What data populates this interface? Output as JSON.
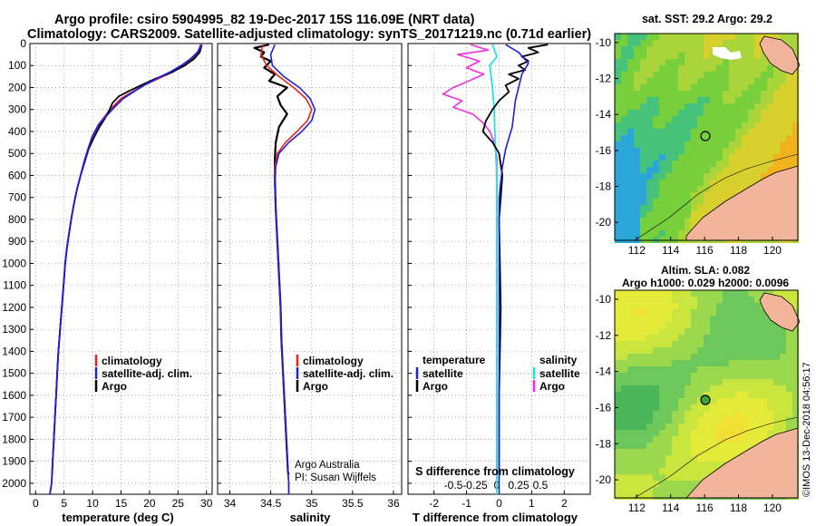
{
  "header": {
    "line1": "Argo profile: csiro 5904995_82 19-Dec-2017 15S 116.09E (NRT data)",
    "line2": "Climatology: CARS2009. Satellite-adjusted climatology: synTS_20171219.nc (0.71d earlier)"
  },
  "colors": {
    "climatology": "#e8231e",
    "satellite": "#1c22d6",
    "argo": "#000000",
    "sat_salinity": "#22e0e8",
    "argo_salinity": "#f02ee0"
  },
  "depth_axis": {
    "ticks": [
      0,
      100,
      200,
      300,
      400,
      500,
      600,
      700,
      800,
      900,
      1000,
      1100,
      1200,
      1300,
      1400,
      1500,
      1600,
      1700,
      1800,
      1900,
      2000
    ],
    "range": [
      0,
      2050
    ]
  },
  "panels": {
    "temperature": {
      "xlabel": "temperature (deg C)",
      "xticks": [
        "0",
        "5",
        "10",
        "15",
        "20",
        "25",
        "30"
      ],
      "legend": [
        "climatology",
        "satellite-adj. clim.",
        "Argo"
      ]
    },
    "salinity": {
      "xlabel": "salinity",
      "xticks": [
        "34",
        "34.5",
        "35",
        "35.5",
        "36"
      ],
      "legend": [
        "climatology",
        "satellite-adj. clim.",
        "Argo"
      ],
      "credit1": "Argo Australia",
      "credit2": "PI: Susan Wijffels"
    },
    "difference": {
      "xlabel": "T difference from climatology",
      "xticks": [
        "-2",
        "-1",
        "0",
        "1",
        "2"
      ],
      "stitle": "S difference from climatology",
      "sticks": [
        "-0.5",
        "-0.25",
        "0",
        "0.25",
        "0.5"
      ],
      "legend_t_head": "temperature",
      "legend_s_head": "salinity",
      "legend_t": [
        "satellite",
        "Argo"
      ],
      "legend_s": [
        "satellite",
        "Argo"
      ]
    }
  },
  "maps": {
    "sst_title": "sat. SST: 29.2 Argo: 29.2",
    "sla_title1": "Altim. SLA: 0.082",
    "sla_title2": "Argo h1000: 0.029 h2000: 0.0096",
    "lat_ticks": [
      "-10",
      "-12",
      "-14",
      "-16",
      "-18",
      "-20"
    ],
    "lon_ticks": [
      "112",
      "114",
      "116",
      "118",
      "120"
    ],
    "float_position": {
      "lon": 116.09,
      "lat": -15
    }
  },
  "footer": "©IMOS 13-Dec-2018 04:56:17",
  "chart_data": [
    {
      "type": "line",
      "title": "temperature",
      "xlabel": "temperature (deg C)",
      "ylabel": "depth",
      "xlim": [
        -1,
        31
      ],
      "ylim": [
        2050,
        0
      ],
      "series": [
        {
          "name": "climatology",
          "x": [
            29.0,
            28.5,
            27.5,
            26.0,
            24.0,
            21.5,
            19.0,
            17.0,
            15.0,
            13.5,
            12.2,
            11.0,
            10.0,
            9.2,
            8.5,
            7.9,
            7.3,
            6.8,
            6.3,
            5.9,
            5.5,
            5.2,
            4.9,
            4.6,
            4.3,
            4.0,
            3.8,
            3.6,
            3.4,
            3.2,
            3.0,
            2.8,
            2.5
          ],
          "depth": [
            5,
            40,
            70,
            100,
            130,
            160,
            190,
            220,
            250,
            290,
            330,
            370,
            420,
            480,
            540,
            600,
            660,
            720,
            790,
            860,
            930,
            1000,
            1100,
            1200,
            1300,
            1400,
            1500,
            1600,
            1700,
            1800,
            1900,
            2000,
            2050
          ]
        },
        {
          "name": "satellite-adj. clim.",
          "x": [
            29.2,
            28.4,
            27.2,
            25.6,
            23.6,
            21.2,
            19.0,
            17.2,
            15.4,
            13.8,
            12.4,
            11.1,
            10.0,
            9.2,
            8.5,
            7.9,
            7.3,
            6.8,
            6.3,
            5.9,
            5.5,
            5.2,
            4.9,
            4.6,
            4.3,
            4.0,
            3.8,
            3.6,
            3.4,
            3.2,
            3.0,
            2.8,
            2.5
          ],
          "depth": [
            5,
            40,
            70,
            100,
            130,
            160,
            190,
            220,
            250,
            290,
            330,
            370,
            420,
            480,
            540,
            600,
            660,
            720,
            790,
            860,
            930,
            1000,
            1100,
            1200,
            1300,
            1400,
            1500,
            1600,
            1700,
            1800,
            1900,
            2000,
            2050
          ]
        },
        {
          "name": "Argo",
          "x": [
            29.2,
            28.8,
            27.8,
            26.2,
            24.0,
            21.0,
            18.5,
            16.5,
            14.6,
            13.5,
            13.0,
            12.2,
            11.2,
            10.2,
            9.3,
            8.6,
            7.9,
            7.3,
            6.8,
            6.3,
            5.9,
            5.5,
            5.2,
            4.9,
            4.6,
            4.3,
            4.0,
            3.8,
            3.6,
            3.4,
            3.2,
            3.0,
            2.9
          ],
          "depth": [
            5,
            40,
            70,
            100,
            130,
            160,
            190,
            215,
            240,
            270,
            300,
            340,
            380,
            430,
            480,
            540,
            600,
            660,
            720,
            790,
            860,
            930,
            1000,
            1100,
            1200,
            1300,
            1400,
            1500,
            1600,
            1700,
            1800,
            1900,
            1960
          ]
        }
      ]
    },
    {
      "type": "line",
      "title": "salinity",
      "xlabel": "salinity",
      "ylabel": "depth",
      "xlim": [
        33.85,
        36.1
      ],
      "ylim": [
        2050,
        0
      ],
      "series": [
        {
          "name": "climatology",
          "x": [
            34.4,
            34.38,
            34.45,
            34.6,
            34.78,
            34.93,
            35.0,
            34.95,
            34.82,
            34.68,
            34.58,
            34.55,
            34.55,
            34.56,
            34.58,
            34.6,
            34.62,
            34.63,
            34.65,
            34.67,
            34.69,
            34.71,
            34.72,
            34.72
          ],
          "depth": [
            5,
            50,
            100,
            150,
            200,
            250,
            300,
            350,
            400,
            450,
            500,
            560,
            650,
            750,
            900,
            1050,
            1200,
            1350,
            1500,
            1650,
            1800,
            1950,
            2000,
            2050
          ]
        },
        {
          "name": "satellite-adj. clim.",
          "x": [
            34.55,
            34.5,
            34.52,
            34.66,
            34.85,
            34.98,
            35.04,
            35.0,
            34.88,
            34.72,
            34.6,
            34.56,
            34.55,
            34.56,
            34.58,
            34.6,
            34.62,
            34.63,
            34.65,
            34.67,
            34.69,
            34.71,
            34.72,
            34.72
          ],
          "depth": [
            5,
            50,
            100,
            150,
            200,
            250,
            300,
            350,
            400,
            450,
            500,
            560,
            650,
            750,
            900,
            1050,
            1200,
            1350,
            1500,
            1650,
            1800,
            1950,
            2000,
            2050
          ]
        },
        {
          "name": "Argo",
          "x": [
            34.48,
            34.3,
            34.42,
            34.38,
            34.5,
            34.42,
            34.55,
            34.48,
            34.7,
            34.58,
            34.62,
            34.7,
            34.6,
            34.56,
            34.55,
            34.55,
            34.56,
            34.58,
            34.6,
            34.62,
            34.63,
            34.65,
            34.67,
            34.69,
            34.71,
            34.72
          ],
          "depth": [
            5,
            20,
            40,
            60,
            80,
            110,
            140,
            170,
            200,
            240,
            280,
            320,
            380,
            450,
            520,
            620,
            750,
            900,
            1050,
            1200,
            1350,
            1500,
            1650,
            1800,
            1950,
            1960
          ]
        }
      ]
    },
    {
      "type": "line",
      "title": "T/S difference from climatology",
      "xlabel": "T difference from climatology",
      "ylabel": "depth",
      "xlim": [
        -2.8,
        2.8
      ],
      "ylim": [
        2050,
        0
      ],
      "series": [
        {
          "name": "T satellite",
          "x": [
            0.2,
            0.6,
            0.9,
            0.7,
            0.6,
            0.5,
            0.45,
            0.4,
            0.3,
            0.2,
            0.1,
            0.0,
            0.0
          ],
          "depth": [
            5,
            40,
            90,
            140,
            200,
            260,
            320,
            380,
            430,
            480,
            560,
            700,
            2050
          ]
        },
        {
          "name": "T Argo",
          "x": [
            1.5,
            0.9,
            1.2,
            0.7,
            0.9,
            0.6,
            0.8,
            0.3,
            0.6,
            0.2,
            0.3,
            0.0,
            -0.2,
            -0.4,
            -0.5,
            -0.2,
            0.0,
            0.1,
            0.0,
            0.05,
            0.0,
            0.0
          ],
          "depth": [
            5,
            20,
            40,
            60,
            80,
            100,
            120,
            140,
            160,
            190,
            220,
            260,
            300,
            350,
            400,
            450,
            500,
            600,
            800,
            1200,
            1600,
            1960
          ]
        },
        {
          "name": "S satellite",
          "x": [
            -0.05,
            0.0,
            -0.08,
            -0.05,
            -0.03,
            -0.02,
            0.0,
            0.0
          ],
          "depth": [
            5,
            60,
            100,
            200,
            300,
            450,
            600,
            2050
          ]
        },
        {
          "name": "S Argo",
          "x": [
            -0.3,
            -0.1,
            -0.45,
            -0.2,
            -0.35,
            -0.15,
            -0.32,
            -0.5,
            -0.62,
            -0.4,
            -0.5,
            -0.28,
            -0.16,
            -0.08,
            -0.03,
            0.0,
            0.0
          ],
          "depth": [
            5,
            30,
            50,
            80,
            110,
            140,
            170,
            200,
            230,
            260,
            290,
            320,
            360,
            400,
            450,
            520,
            1960
          ]
        }
      ]
    }
  ]
}
